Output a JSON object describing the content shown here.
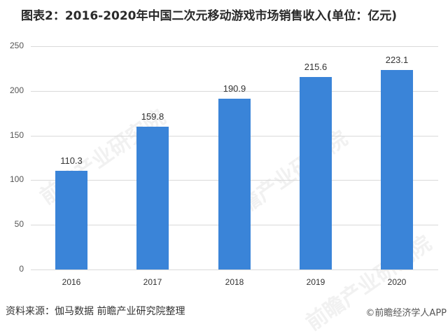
{
  "title": "图表2：2016-2020年中国二次元移动游戏市场销售收入(单位：亿元)",
  "footer": {
    "source": "资料来源：伽马数据 前瞻产业研究院整理",
    "credit": "©前瞻经济学人APP"
  },
  "watermark": "前瞻产业研究院",
  "chart_data": {
    "type": "bar",
    "title": "图表2：2016-2020年中国二次元移动游戏市场销售收入(单位：亿元)",
    "xlabel": "",
    "ylabel": "亿元",
    "categories": [
      "2016",
      "2017",
      "2018",
      "2019",
      "2020"
    ],
    "values": [
      110.3,
      159.8,
      190.9,
      215.6,
      223.1
    ],
    "value_labels": [
      "110.3",
      "159.8",
      "190.9",
      "215.6",
      "223.1"
    ],
    "yticks": [
      "0",
      "50",
      "100",
      "150",
      "200",
      "250"
    ],
    "ylim": [
      0,
      250
    ],
    "grid": true,
    "legend": null,
    "bar_color": "#3a84d8"
  }
}
